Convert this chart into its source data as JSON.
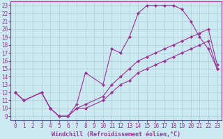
{
  "background_color": "#cce8f0",
  "grid_color": "#b0ccd4",
  "line_color": "#993399",
  "marker": "D",
  "marker_size": 2,
  "xlabel": "Windchill (Refroidissement éolien,°C)",
  "xlim": [
    -0.5,
    23.5
  ],
  "ylim": [
    8.5,
    23.5
  ],
  "xticks": [
    0,
    1,
    2,
    3,
    4,
    5,
    6,
    7,
    8,
    9,
    10,
    11,
    12,
    13,
    14,
    15,
    16,
    17,
    18,
    19,
    20,
    21,
    22,
    23
  ],
  "yticks": [
    9,
    10,
    11,
    12,
    13,
    14,
    15,
    16,
    17,
    18,
    19,
    20,
    21,
    22,
    23
  ],
  "curve1_x": [
    0,
    1,
    3,
    4,
    5,
    6,
    7,
    8,
    10,
    11,
    12,
    13,
    14,
    15,
    16,
    17,
    18,
    19,
    20,
    21,
    22,
    23
  ],
  "curve1_y": [
    12,
    11,
    12,
    10,
    9,
    9,
    10.5,
    14.5,
    13,
    17.5,
    17,
    19,
    22,
    23,
    23,
    23,
    23,
    22.5,
    21,
    19,
    17.5,
    15
  ],
  "curve2_x": [
    0,
    1,
    3,
    4,
    5,
    6,
    7,
    8,
    10,
    11,
    12,
    13,
    14,
    15,
    16,
    17,
    18,
    19,
    20,
    21,
    22,
    23
  ],
  "curve2_y": [
    12,
    11,
    12,
    10,
    9,
    9,
    10,
    10.5,
    11.5,
    13,
    14,
    15,
    16,
    16.5,
    17,
    17.5,
    18,
    18.5,
    19,
    19.5,
    20,
    15.5
  ],
  "curve3_x": [
    0,
    1,
    3,
    4,
    5,
    6,
    7,
    8,
    10,
    11,
    12,
    13,
    14,
    15,
    16,
    17,
    18,
    19,
    20,
    21,
    22,
    23
  ],
  "curve3_y": [
    12,
    11,
    12,
    10,
    9,
    9,
    10,
    10,
    11,
    12,
    13,
    13.5,
    14.5,
    15,
    15.5,
    16,
    16.5,
    17,
    17.5,
    18,
    18.5,
    15
  ],
  "font_size_label": 6,
  "font_size_tick": 5.5
}
